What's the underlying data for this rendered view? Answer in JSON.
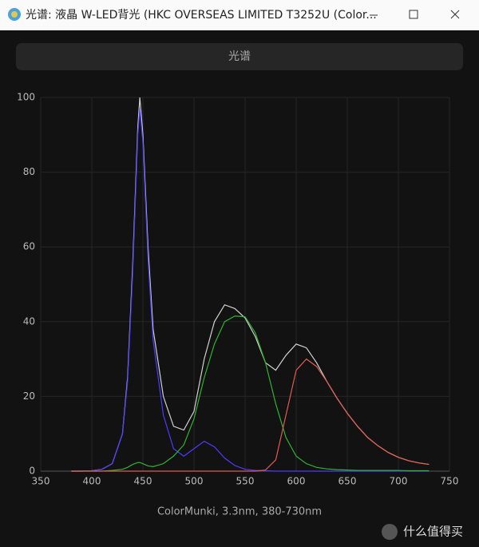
{
  "window": {
    "title": "光谱: 液晶 W-LED背光 (HKC OVERSEAS LIMITED T3252U (Color...",
    "button": "光谱",
    "watermark": "什么值得买"
  },
  "chart_data": {
    "type": "line",
    "xlabel": "ColorMunki, 3.3nm, 380-730nm",
    "x": [
      380,
      390,
      400,
      410,
      420,
      430,
      435,
      440,
      445,
      447,
      450,
      455,
      460,
      470,
      480,
      490,
      500,
      510,
      520,
      530,
      540,
      550,
      560,
      570,
      580,
      590,
      600,
      610,
      620,
      630,
      640,
      650,
      660,
      670,
      680,
      690,
      700,
      710,
      720,
      730
    ],
    "series": [
      {
        "color": "#d0d0d0",
        "values": [
          0,
          0,
          0.1,
          0.5,
          2,
          10,
          25,
          55,
          92,
          100,
          90,
          60,
          38,
          20,
          12,
          11,
          16,
          30,
          40,
          44.5,
          43.5,
          41,
          36,
          29,
          27,
          31,
          34,
          33,
          29,
          24,
          19.5,
          15.5,
          12,
          9,
          6.8,
          5,
          3.7,
          2.8,
          2.2,
          1.8
        ]
      },
      {
        "color": "#4b3cff",
        "values": [
          0,
          0,
          0.1,
          0.5,
          2,
          10,
          24,
          53,
          90,
          97,
          88,
          57,
          35,
          15,
          6,
          4,
          6,
          8,
          6.5,
          3.5,
          1.5,
          0.5,
          0.2,
          0.1,
          0,
          0,
          0,
          0,
          0,
          0,
          0,
          0,
          0,
          0,
          0,
          0,
          0,
          0,
          0,
          0
        ]
      },
      {
        "color": "#2fb52f",
        "values": [
          0,
          0,
          0,
          0,
          0.2,
          0.5,
          1,
          1.8,
          2.3,
          2.3,
          2,
          1.4,
          1.2,
          2,
          4,
          7,
          14,
          25,
          34,
          40,
          41.5,
          41.3,
          37,
          29,
          18,
          9,
          4,
          2,
          1,
          0.6,
          0.4,
          0.3,
          0.2,
          0.2,
          0.2,
          0.2,
          0.2,
          0.1,
          0.1,
          0.1
        ]
      },
      {
        "color": "#e05a55",
        "values": [
          0,
          0,
          0,
          0,
          0,
          0,
          0,
          0,
          0,
          0,
          0,
          0,
          0,
          0,
          0,
          0,
          0,
          0,
          0,
          0,
          0,
          0,
          0,
          0.3,
          3,
          15,
          27,
          30,
          28,
          24,
          19.5,
          15.5,
          12,
          9,
          6.8,
          5,
          3.7,
          2.8,
          2.2,
          1.8
        ]
      }
    ],
    "xlim": [
      350,
      750
    ],
    "xticks": [
      350,
      400,
      450,
      500,
      550,
      600,
      650,
      700,
      750
    ],
    "ylim": [
      0,
      100
    ],
    "yticks": [
      0,
      20,
      40,
      60,
      80,
      100
    ],
    "grid": true
  }
}
